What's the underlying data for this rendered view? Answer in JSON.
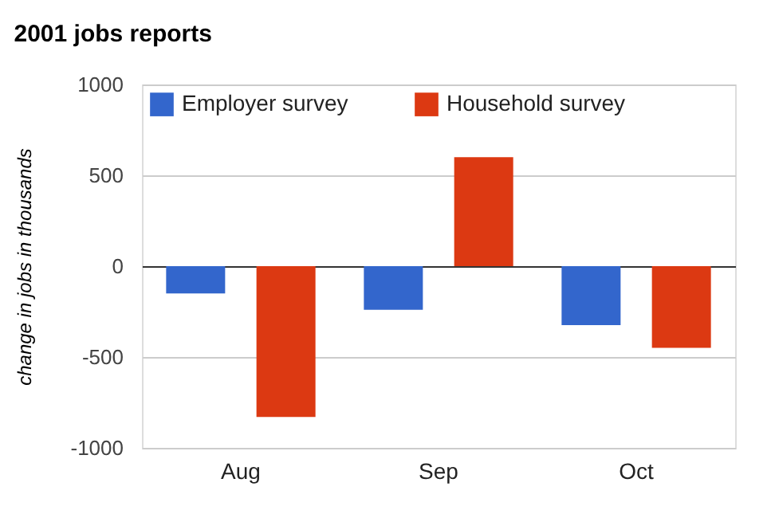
{
  "chart_data": {
    "type": "bar",
    "title": "2001 jobs reports",
    "ylabel": "change in jobs in thousands",
    "categories": [
      "Aug",
      "Sep",
      "Oct"
    ],
    "series": [
      {
        "name": "Employer survey",
        "color": "#3366cc",
        "values": [
          -150,
          -240,
          -325
        ]
      },
      {
        "name": "Household survey",
        "color": "#dc3912",
        "values": [
          -830,
          600,
          -450
        ]
      }
    ],
    "ylim": [
      -1000,
      1000
    ],
    "yticks": [
      -1000,
      -500,
      0,
      500,
      1000
    ],
    "grid": "y",
    "legend": "top left"
  }
}
